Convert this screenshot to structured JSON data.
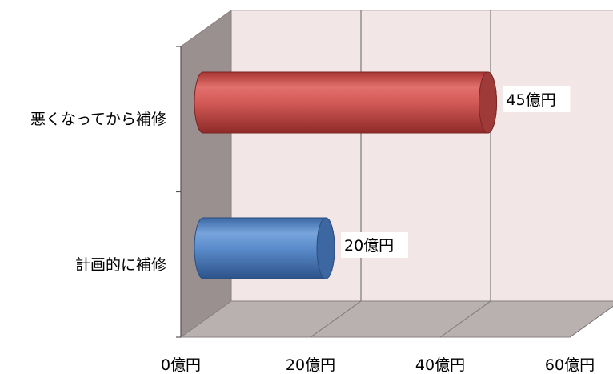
{
  "chart_data": {
    "type": "bar",
    "orientation": "horizontal",
    "style": "3d-cylinder",
    "categories": [
      "悪くなってから補修",
      "計画的に補修"
    ],
    "values": [
      45,
      20
    ],
    "data_labels": [
      "45億円",
      "20億円"
    ],
    "x_ticks": [
      0,
      20,
      40,
      60
    ],
    "x_tick_labels": [
      "0億円",
      "20億円",
      "40億円",
      "60億円"
    ],
    "xlim": [
      0,
      60
    ],
    "grid": "vertical",
    "legend": "none",
    "title": "",
    "xlabel": "",
    "ylabel": "",
    "colors": {
      "bar_1": "#c0504d",
      "bar_2": "#4f81bd",
      "back_wall": "#f2e6e6",
      "side_wall": "#9b9090",
      "floor": "#b9b0b0"
    }
  }
}
